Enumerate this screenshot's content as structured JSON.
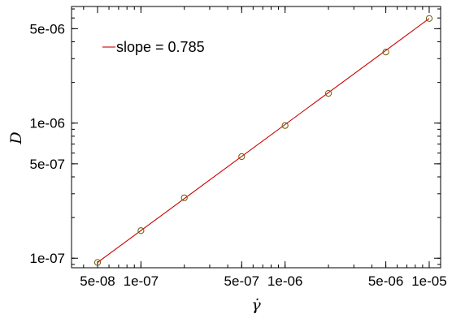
{
  "chart_data": {
    "type": "scatter",
    "title": "",
    "xlabel": "γ̇",
    "ylabel": "D",
    "xscale": "log",
    "yscale": "log",
    "xlim": [
      3.3e-08,
      1.2e-05
    ],
    "ylim": [
      8.5e-08,
      7.3e-06
    ],
    "grid": false,
    "legend_position": "top-left",
    "x_ticks": [
      {
        "value": 5e-08,
        "label": "5e-08"
      },
      {
        "value": 1e-07,
        "label": "1e-07"
      },
      {
        "value": 5e-07,
        "label": "5e-07"
      },
      {
        "value": 1e-06,
        "label": "1e-06"
      },
      {
        "value": 5e-06,
        "label": "5e-06"
      },
      {
        "value": 1e-05,
        "label": "1e-05"
      }
    ],
    "y_ticks": [
      {
        "value": 1e-07,
        "label": "1e-07"
      },
      {
        "value": 5e-07,
        "label": "5e-07"
      },
      {
        "value": 1e-06,
        "label": "1e-06"
      },
      {
        "value": 5e-06,
        "label": "5e-06"
      }
    ],
    "series": [
      {
        "x": [
          5e-08,
          1e-07,
          2e-07,
          5e-07,
          1e-06,
          2e-06,
          5e-06,
          1e-05
        ],
        "y": [
          9.3e-08,
          1.6e-07,
          2.8e-07,
          5.65e-07,
          9.6e-07,
          1.66e-06,
          3.36e-06,
          5.95e-06
        ],
        "marker": "circle",
        "color": "#6b5a00"
      },
      {
        "name": "slope = 0.785",
        "type": "line",
        "x": [
          5e-08,
          1e-05
        ],
        "y": [
          9.3e-08,
          5.95e-06
        ],
        "color": "#cc0000"
      }
    ]
  }
}
